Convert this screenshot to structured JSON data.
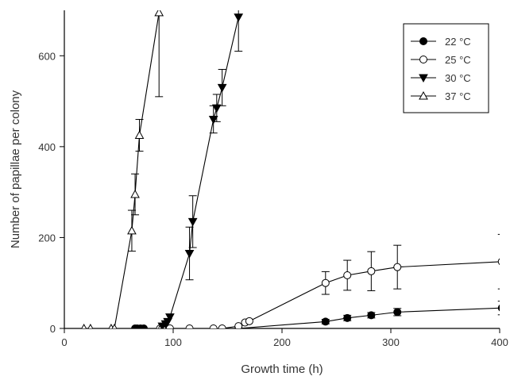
{
  "chart_data": {
    "type": "scatter",
    "xlabel": "Growth time (h)",
    "ylabel": "Number of papillae per colony",
    "xlim": [
      0,
      400
    ],
    "ylim": [
      0,
      700
    ],
    "xticks": [
      0,
      100,
      200,
      300,
      400
    ],
    "yticks": [
      0,
      200,
      400,
      600
    ],
    "x_tick_labels": [
      "0",
      "100",
      "200",
      "300",
      "400"
    ],
    "y_tick_labels": [
      "0",
      "200",
      "400",
      "600"
    ],
    "grid": false,
    "legend_position": "top-right",
    "series": [
      {
        "name": "22 °C",
        "marker": "circle-filled",
        "color": "#000000",
        "points": [
          {
            "x": 65,
            "y": 0
          },
          {
            "x": 67,
            "y": 0
          },
          {
            "x": 70,
            "y": 0
          },
          {
            "x": 73,
            "y": 0
          },
          {
            "x": 160,
            "y": 0
          },
          {
            "x": 240,
            "y": 15,
            "err": 5
          },
          {
            "x": 260,
            "y": 23,
            "err": 6
          },
          {
            "x": 282,
            "y": 29,
            "err": 6
          },
          {
            "x": 306,
            "y": 36,
            "err": 8
          },
          {
            "x": 402,
            "y": 45,
            "err": 15
          }
        ]
      },
      {
        "name": "25 °C",
        "marker": "circle-open",
        "color": "#000000",
        "points": [
          {
            "x": 88,
            "y": 0
          },
          {
            "x": 90,
            "y": 0
          },
          {
            "x": 97,
            "y": 0
          },
          {
            "x": 115,
            "y": 0
          },
          {
            "x": 137,
            "y": 0
          },
          {
            "x": 145,
            "y": 0
          },
          {
            "x": 160,
            "y": 5
          },
          {
            "x": 166,
            "y": 13
          },
          {
            "x": 170,
            "y": 16
          },
          {
            "x": 240,
            "y": 100,
            "err": 25
          },
          {
            "x": 260,
            "y": 117,
            "err": 33
          },
          {
            "x": 282,
            "y": 126,
            "err": 43
          },
          {
            "x": 306,
            "y": 135,
            "err": 48
          },
          {
            "x": 402,
            "y": 147,
            "err": 60
          }
        ]
      },
      {
        "name": "30 °C",
        "marker": "triangle-down-filled",
        "color": "#000000",
        "points": [
          {
            "x": 90,
            "y": 5
          },
          {
            "x": 93,
            "y": 10
          },
          {
            "x": 95,
            "y": 15
          },
          {
            "x": 97,
            "y": 25
          },
          {
            "x": 115,
            "y": 165,
            "err": 58
          },
          {
            "x": 118,
            "y": 235,
            "err": 57
          },
          {
            "x": 137,
            "y": 460,
            "err": 30
          },
          {
            "x": 140,
            "y": 485,
            "err": 30
          },
          {
            "x": 145,
            "y": 530,
            "err": 40
          },
          {
            "x": 160,
            "y": 685,
            "err": 75
          }
        ]
      },
      {
        "name": "37 °C",
        "marker": "triangle-up-open",
        "color": "#000000",
        "points": [
          {
            "x": 18,
            "y": 0
          },
          {
            "x": 24,
            "y": 0
          },
          {
            "x": 43,
            "y": 0
          },
          {
            "x": 46,
            "y": 0
          },
          {
            "x": 62,
            "y": 215,
            "err": 45
          },
          {
            "x": 65,
            "y": 295,
            "err": 45
          },
          {
            "x": 69,
            "y": 425,
            "err": 35
          },
          {
            "x": 87,
            "y": 695,
            "err": 185
          }
        ]
      }
    ]
  }
}
